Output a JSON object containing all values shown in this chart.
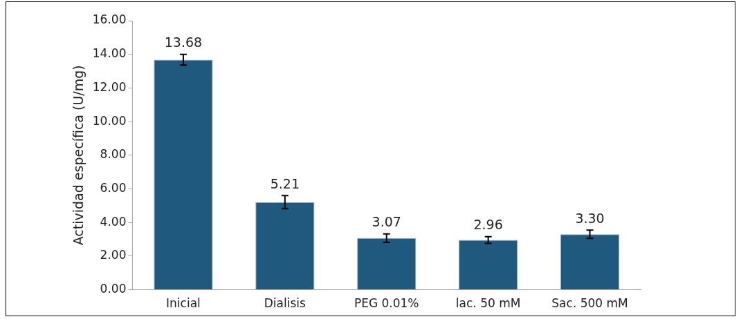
{
  "chart_data": {
    "type": "bar",
    "ylabel": "Actividad específica (U/mg)",
    "categories": [
      "Inicial",
      "Dialisis",
      "PEG 0.01%",
      "lac. 50 mM",
      "Sac. 500 mM"
    ],
    "values": [
      13.68,
      5.21,
      3.07,
      2.96,
      3.3
    ],
    "errors": [
      0.32,
      0.39,
      0.25,
      0.2,
      0.25
    ],
    "value_labels": [
      "13.68",
      "5.21",
      "3.07",
      "2.96",
      "3.30"
    ],
    "color": "#1f5a7e",
    "ylim": [
      0,
      16
    ],
    "yticks": [
      {
        "value": 0,
        "label": "0.00"
      },
      {
        "value": 2,
        "label": "2.00"
      },
      {
        "value": 4,
        "label": "4.00"
      },
      {
        "value": 6,
        "label": "6.00"
      },
      {
        "value": 8,
        "label": "8.00"
      },
      {
        "value": 10,
        "label": "10.00"
      },
      {
        "value": 12,
        "label": "12.00"
      },
      {
        "value": 14,
        "label": "14.00"
      },
      {
        "value": 16,
        "label": "16.00"
      }
    ],
    "grid": false,
    "legend": false
  }
}
